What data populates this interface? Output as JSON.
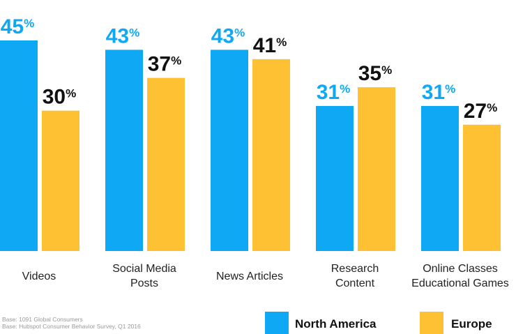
{
  "chart_data": {
    "type": "bar",
    "title": "",
    "xlabel": "",
    "ylabel": "",
    "ylim": [
      0,
      45
    ],
    "grid": false,
    "legend_placement": "bottom-right",
    "value_suffix": "%",
    "categories": [
      [
        "Videos"
      ],
      [
        "Social Media",
        "Posts"
      ],
      [
        "News Articles"
      ],
      [
        "Research",
        "Content"
      ],
      [
        "Online Classes",
        "Educational Games"
      ]
    ],
    "series": [
      {
        "name": "North America",
        "color": "#0ea8f4",
        "label_color": "#0ea8f4",
        "values": [
          45,
          43,
          43,
          31,
          31
        ]
      },
      {
        "name": "Europe",
        "color": "#fec134",
        "label_color": "#111111",
        "values": [
          30,
          37,
          41,
          35,
          27
        ]
      }
    ]
  },
  "notes": [
    "Base: 1091 Global Consumers",
    "Base: Hubspot Consumer Behavior Survey, Q1 2016"
  ]
}
